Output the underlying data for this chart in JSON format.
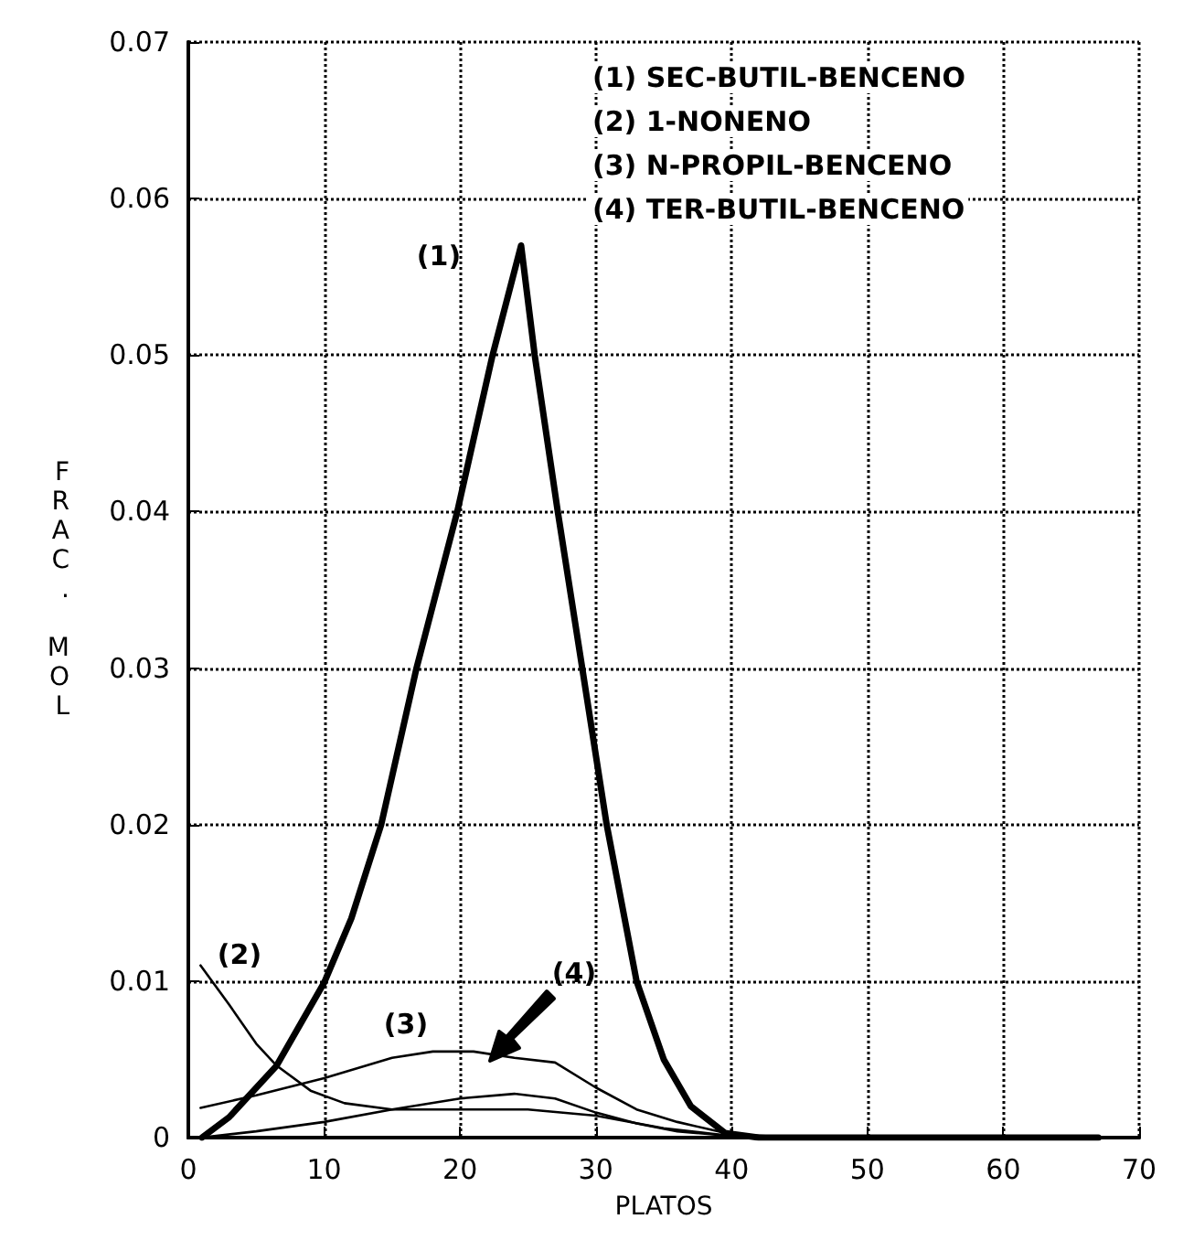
{
  "chart_data": {
    "type": "line",
    "xlabel": "PLATOS",
    "ylabel": "FRAC. MOL",
    "xlim": [
      0,
      70
    ],
    "xticks": [
      0,
      10,
      20,
      30,
      40,
      50,
      60,
      70
    ],
    "ylim": [
      0,
      0.07
    ],
    "yticks": [
      0,
      0.01,
      0.02,
      0.03,
      0.04,
      0.05,
      0.06,
      0.07
    ],
    "grid": true,
    "marker": "none",
    "line_style": "solid",
    "series": [
      {
        "color": "#000000",
        "x": [
          1,
          3,
          6.5,
          10,
          12,
          14.2,
          16.8,
          19.8,
          22.4,
          24.5,
          25.5,
          27.2,
          29,
          30.8,
          33,
          35,
          37,
          39.5,
          42,
          67
        ],
        "values": [
          0,
          0.0013,
          0.0046,
          0.0099,
          0.014,
          0.02,
          0.03,
          0.04,
          0.05,
          0.057,
          0.05,
          0.04,
          0.03,
          0.02,
          0.01,
          0.005,
          0.002,
          0.0003,
          0,
          0
        ]
      },
      {
        "color": "#000000",
        "x": [
          0.9,
          3,
          5,
          6.5,
          9,
          11.5,
          15,
          20,
          25,
          30,
          35,
          40,
          45,
          67
        ],
        "values": [
          0.011,
          0.0085,
          0.006,
          0.0046,
          0.003,
          0.0022,
          0.0018,
          0.0018,
          0.0018,
          0.0014,
          0.0006,
          0.0001,
          0,
          0
        ]
      },
      {
        "color": "#000000",
        "x": [
          0.9,
          5,
          10,
          15,
          18,
          21,
          24,
          27,
          30,
          33,
          36,
          40,
          45,
          67
        ],
        "values": [
          0.0019,
          0.0027,
          0.0038,
          0.0051,
          0.0055,
          0.0055,
          0.0051,
          0.0048,
          0.0032,
          0.0018,
          0.001,
          0.0002,
          0,
          0
        ]
      },
      {
        "color": "#000000",
        "x": [
          0.9,
          5,
          10,
          15,
          20,
          24,
          27,
          30,
          33,
          36,
          40,
          45,
          67
        ],
        "values": [
          0,
          0.0004,
          0.001,
          0.0018,
          0.0025,
          0.0028,
          0.0025,
          0.0016,
          0.0009,
          0.0004,
          0.0001,
          0,
          0
        ]
      }
    ],
    "annotations": [
      "(1)",
      "(2)",
      "(3)",
      "(4)",
      "(1) SEC-BUTIL-BENCENO",
      "(2) 1-NONENO",
      "(3) N-PROPIL-BENCENO",
      "(4) TER-BUTIL-BENCENO"
    ]
  }
}
